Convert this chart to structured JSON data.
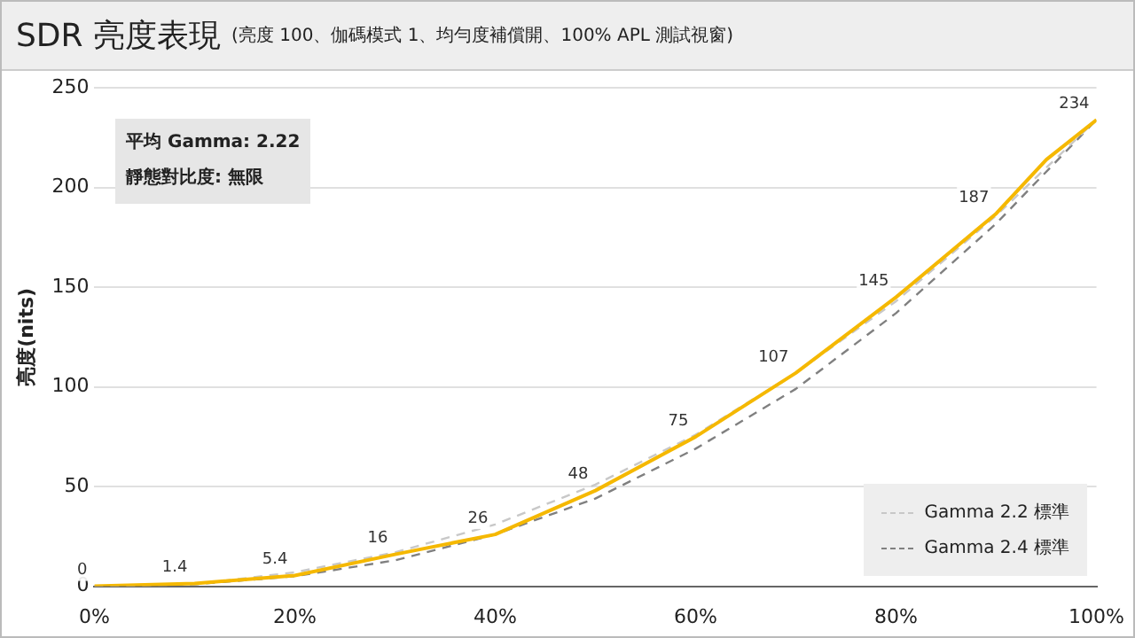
{
  "chart_data": {
    "type": "line",
    "title": "SDR 亮度表現",
    "subtitle": "(亮度 100、伽碼模式 1、均勻度補償開、100% APL 測試視窗)",
    "ylabel": "亮度(nits)",
    "annotations": [
      "平均 Gamma: 2.22",
      "靜態對比度: 無限"
    ],
    "series": [
      {
        "color": "#f5b800",
        "line_style": "solid",
        "x": [
          0,
          10,
          20,
          30,
          40,
          50,
          60,
          70,
          80,
          90,
          95,
          100
        ],
        "values": [
          0,
          1.4,
          5.4,
          16,
          26,
          48,
          75,
          107,
          145,
          187,
          214,
          234
        ],
        "value_labels": [
          "0",
          "1.4",
          "5.4",
          "16",
          "26",
          "48",
          "75",
          "107",
          "145",
          "187",
          null,
          "234"
        ]
      },
      {
        "name": "Gamma 2.2 標準",
        "color": "#c8c8c8",
        "line_style": "dashed",
        "x": [
          0,
          10,
          20,
          30,
          40,
          50,
          60,
          70,
          80,
          90,
          100
        ],
        "values": [
          0,
          1,
          7,
          17,
          31,
          51,
          76,
          107,
          143,
          186,
          234
        ]
      },
      {
        "name": "Gamma 2.4 標準",
        "color": "#808080",
        "line_style": "dashed",
        "x": [
          0,
          10,
          20,
          30,
          40,
          50,
          60,
          70,
          80,
          90,
          100
        ],
        "values": [
          0,
          1,
          5,
          13,
          26,
          44,
          69,
          99,
          137,
          182,
          234
        ]
      }
    ],
    "xlim": [
      0,
      100
    ],
    "xticks": [
      {
        "value": 0,
        "label": "0%"
      },
      {
        "value": 20,
        "label": "20%"
      },
      {
        "value": 40,
        "label": "40%"
      },
      {
        "value": 60,
        "label": "60%"
      },
      {
        "value": 80,
        "label": "80%"
      },
      {
        "value": 100,
        "label": "100%"
      }
    ],
    "ylim": [
      0,
      250
    ],
    "yticks": [
      0,
      50,
      100,
      150,
      200,
      250
    ],
    "grid": "y",
    "legend": "bottom right",
    "marker": "none"
  }
}
